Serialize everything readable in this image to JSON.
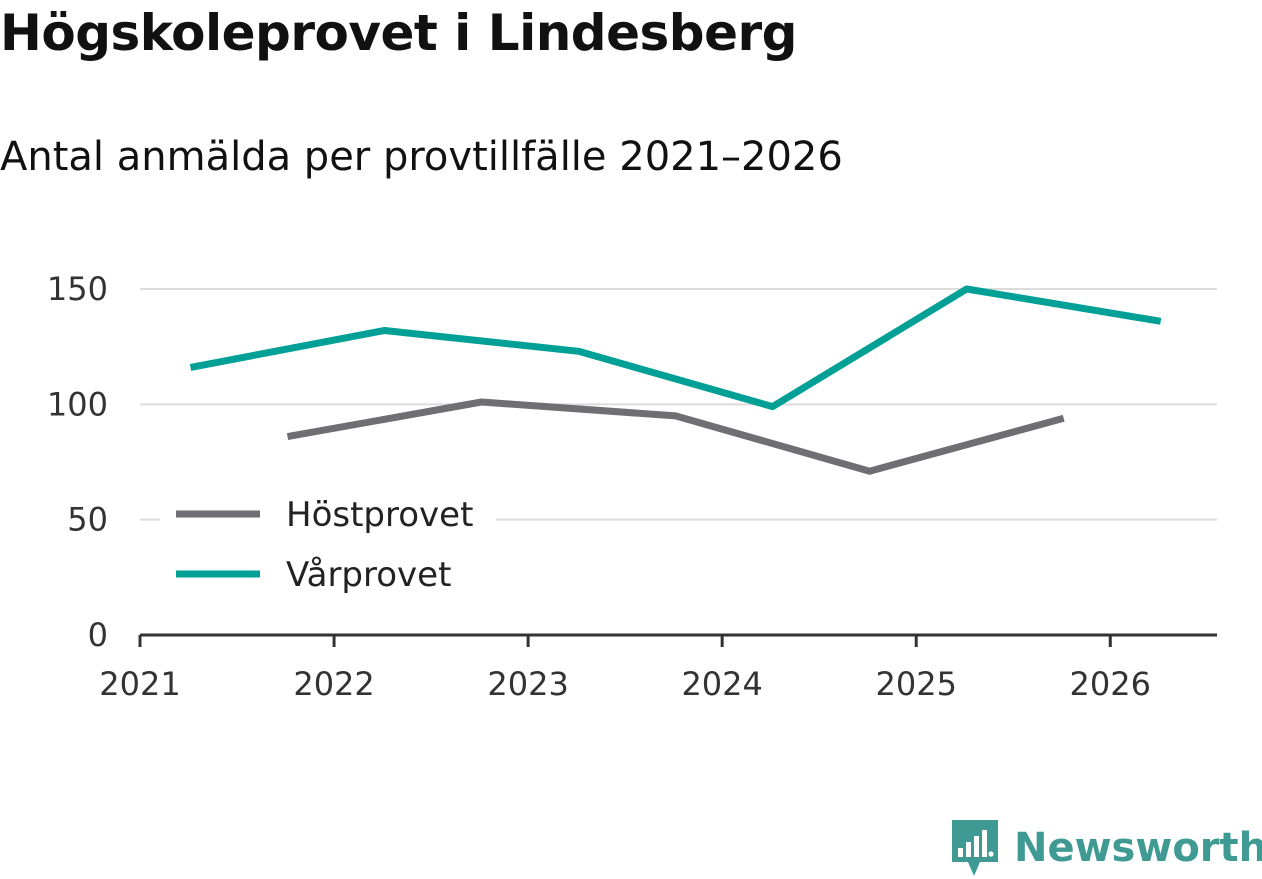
{
  "header": {
    "title": "Högskoleprovet i Lindesberg",
    "subtitle": "Antal anmälda per provtillfälle 2021–2026"
  },
  "chart_data": {
    "type": "line",
    "title": "Högskoleprovet i Lindesberg",
    "subtitle": "Antal anmälda per provtillfälle 2021–2026",
    "xlabel": "",
    "ylabel": "",
    "xlim": [
      2021,
      2026.55
    ],
    "ylim": [
      0,
      150
    ],
    "xticks": [
      2021,
      2022,
      2023,
      2024,
      2025,
      2026
    ],
    "xtick_labels": [
      "2021",
      "2022",
      "2023",
      "2024",
      "2025",
      "2026"
    ],
    "yticks": [
      0,
      50,
      100,
      150
    ],
    "ytick_labels": [
      "0",
      "50",
      "100",
      "150"
    ],
    "grid": true,
    "legend_position": "bottom-left",
    "series": [
      {
        "name": "Höstprovet",
        "color": "#6e6e73",
        "x": [
          2021.76,
          2022.76,
          2023.76,
          2024.76,
          2025.76
        ],
        "y": [
          86,
          101,
          95,
          71,
          94
        ]
      },
      {
        "name": "Vårprovet",
        "color": "#00a096",
        "x": [
          2021.26,
          2022.26,
          2023.26,
          2024.26,
          2025.26,
          2026.26
        ],
        "y": [
          116,
          132,
          123,
          99,
          150,
          136
        ]
      }
    ]
  },
  "branding": {
    "logo_icon": "newsworthy-bar-chart-icon",
    "logo_text": "Newsworthy",
    "logo_color": "#3f9a94"
  }
}
